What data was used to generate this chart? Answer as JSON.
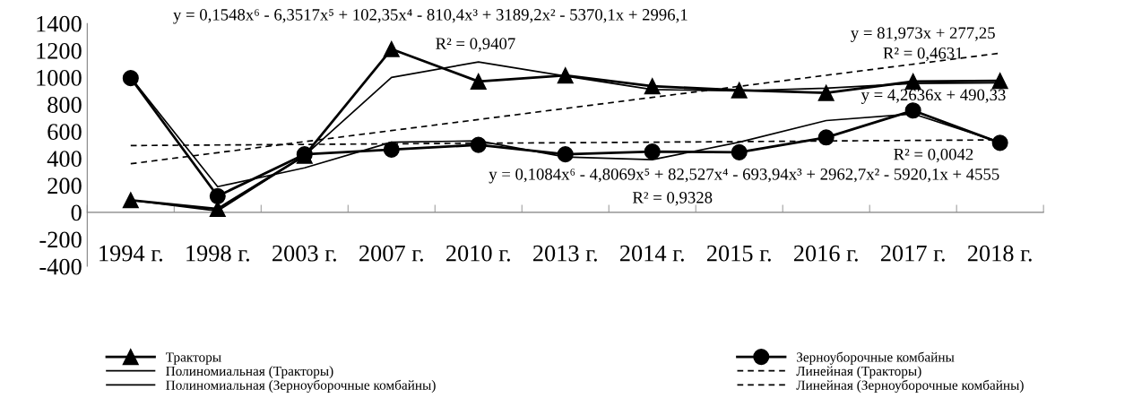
{
  "chart_data": {
    "type": "line",
    "categories": [
      "1994 г.",
      "1998 г.",
      "2003 г.",
      "2007 г.",
      "2010 г.",
      "2013 г.",
      "2014 г.",
      "2015 г.",
      "2016 г.",
      "2017 г.",
      "2018 г."
    ],
    "ylim": [
      -400,
      1400
    ],
    "yticks": [
      -400,
      -200,
      0,
      200,
      400,
      600,
      800,
      1000,
      1200,
      1400
    ],
    "series": [
      {
        "name": "Тракторы",
        "color": "#000000",
        "marker": "triangle",
        "line_style": "solid",
        "values": [
          90,
          25,
          420,
          1210,
          970,
          1015,
          935,
          905,
          885,
          970,
          975
        ]
      },
      {
        "name": "Полиномиальная (Тракторы)",
        "type": "line",
        "color": "#000000",
        "marker": "none",
        "line_style": "solid",
        "values": [
          90,
          10,
          420,
          1000,
          1115,
          1010,
          910,
          900,
          920,
          955,
          960
        ]
      },
      {
        "name": "Полиномиальная (Зерноуборочные комбайны)",
        "type": "line",
        "color": "#000000",
        "marker": "none",
        "line_style": "solid",
        "values": [
          1000,
          190,
          330,
          520,
          530,
          410,
          390,
          520,
          680,
          730,
          520
        ]
      },
      {
        "name": "Зерноуборочные комбайны",
        "color": "#000000",
        "marker": "circle",
        "line_style": "solid",
        "values": [
          995,
          120,
          430,
          465,
          500,
          430,
          450,
          445,
          555,
          755,
          515
        ]
      },
      {
        "name": "Линейная (Тракторы)",
        "type": "line",
        "color": "#000000",
        "marker": "none",
        "line_style": "dashed",
        "values": [
          360,
          442,
          524,
          606,
          688,
          770,
          852,
          934,
          1016,
          1098,
          1180
        ]
      },
      {
        "name": "Линейная (Зерноуборочные комбайны)",
        "type": "line",
        "color": "#000000",
        "marker": "none",
        "line_style": "dashed",
        "values": [
          495,
          499,
          503,
          508,
          512,
          516,
          520,
          524,
          529,
          533,
          537
        ]
      }
    ],
    "annotations": [
      "y = 0,1548x⁶ - 6,3517x⁵ + 102,35x⁴ - 810,4x³ + 3189,2x² - 5370,1x + 2996,1",
      "R² = 0,9407",
      "y = 81,973x + 277,25",
      "R² = 0,4631",
      "y = 4,2636x + 490,33",
      "R² = 0,0042",
      "y = 0,1084x⁶ - 4,8069x⁵ + 82,527x⁴ - 693,94x³ + 2962,7x² - 5920,1x + 4555",
      "R² = 0,9328"
    ],
    "legend": "bottom",
    "grid": false
  }
}
